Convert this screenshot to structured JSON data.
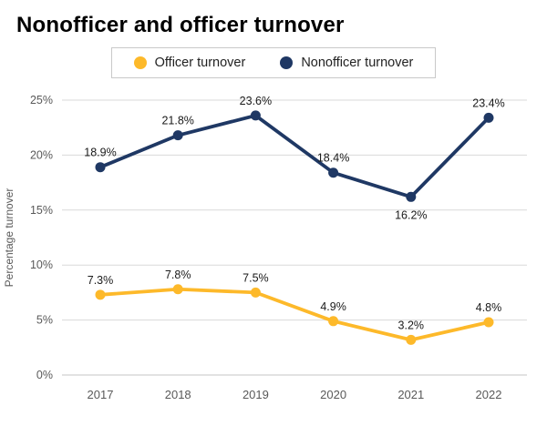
{
  "page": {
    "title": "Nonofficer and officer turnover"
  },
  "legend": {
    "items": [
      {
        "label": "Officer turnover",
        "color": "#FDB92A"
      },
      {
        "label": "Nonofficer turnover",
        "color": "#1F3864"
      }
    ]
  },
  "chart_data": {
    "type": "line",
    "title": "Nonofficer and officer turnover",
    "categories": [
      "2017",
      "2018",
      "2019",
      "2020",
      "2021",
      "2022"
    ],
    "series": [
      {
        "name": "Officer turnover",
        "color": "#FDB92A",
        "values": [
          7.3,
          7.8,
          7.5,
          4.9,
          3.2,
          4.8
        ],
        "labels": [
          "7.3%",
          "7.8%",
          "7.5%",
          "4.9%",
          "3.2%",
          "4.8%"
        ],
        "label_positions": [
          "above",
          "above",
          "above",
          "above",
          "above",
          "above"
        ]
      },
      {
        "name": "Nonofficer turnover",
        "color": "#1F3864",
        "values": [
          18.9,
          21.8,
          23.6,
          18.4,
          16.2,
          23.4
        ],
        "labels": [
          "18.9%",
          "21.8%",
          "23.6%",
          "18.4%",
          "16.2%",
          "23.4%"
        ],
        "label_positions": [
          "above",
          "above",
          "above",
          "above",
          "below",
          "above"
        ]
      }
    ],
    "xlabel": "",
    "ylabel": "Percentage turnover",
    "ylim": [
      0,
      25
    ],
    "yticks": [
      0,
      5,
      10,
      15,
      20,
      25
    ],
    "ytick_labels": [
      "0%",
      "5%",
      "10%",
      "15%",
      "20%",
      "25%"
    ],
    "grid": true,
    "legend_position": "top"
  }
}
